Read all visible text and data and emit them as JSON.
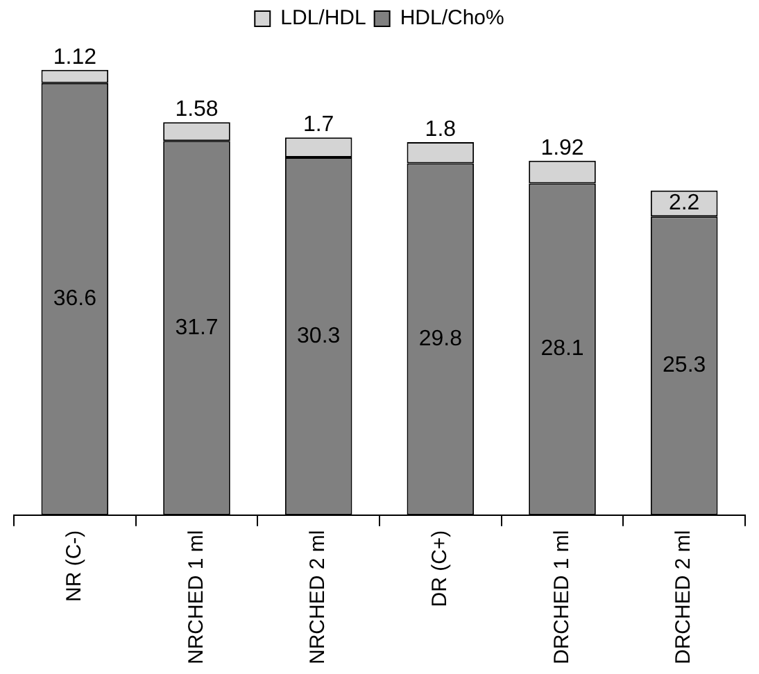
{
  "chart_data": {
    "type": "bar",
    "stacked": true,
    "data_labels": true,
    "legend": "top",
    "grid": false,
    "categories": [
      "NR (C-)",
      "NRCHED 1 ml",
      "NRCHED 2 ml",
      "DR (C+)",
      "DRCHED 1 ml",
      "DRCHED 2 ml"
    ],
    "series": [
      {
        "name": "HDL/Cho%",
        "color": "#808080",
        "values": [
          36.6,
          31.7,
          30.3,
          29.8,
          28.1,
          25.3
        ]
      },
      {
        "name": "LDL/HDL",
        "color": "#d4d4d4",
        "values": [
          1.12,
          1.58,
          1.7,
          1.8,
          1.92,
          2.2
        ]
      }
    ]
  }
}
